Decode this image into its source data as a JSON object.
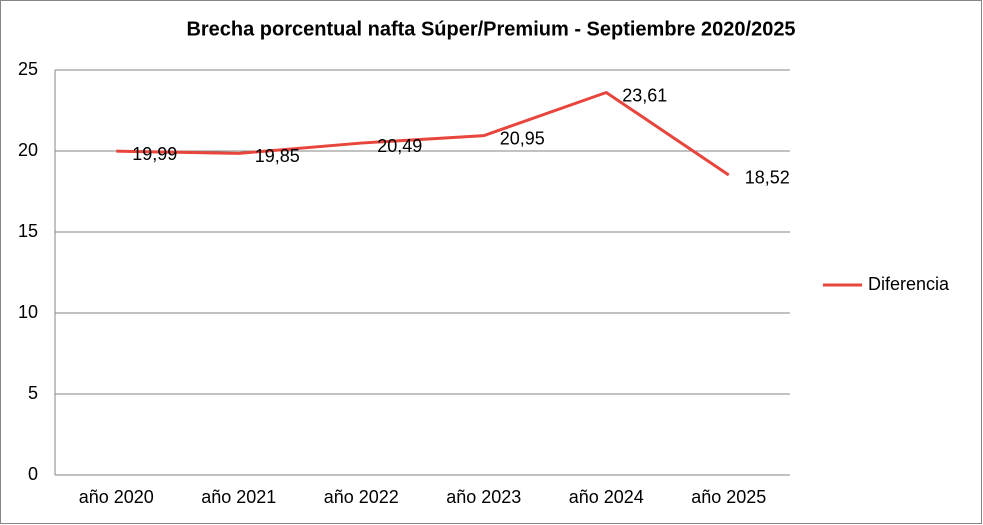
{
  "chart_data": {
    "type": "line",
    "title": "Brecha porcentual nafta Súper/Premium - Septiembre 2020/2025",
    "categories": [
      "año 2020",
      "año 2021",
      "año 2022",
      "año 2023",
      "año 2024",
      "año 2025"
    ],
    "series": [
      {
        "name": "Diferencia",
        "color": "#e8453c",
        "values": [
          19.99,
          19.85,
          20.49,
          20.95,
          23.61,
          18.52
        ],
        "value_labels": [
          "19,99",
          "19,85",
          "20,49",
          "20,95",
          "23,61",
          "18,52"
        ]
      }
    ],
    "ylim": [
      0,
      25
    ],
    "yticks": [
      0,
      5,
      10,
      15,
      20,
      25
    ],
    "grid": true,
    "legend": "right"
  }
}
